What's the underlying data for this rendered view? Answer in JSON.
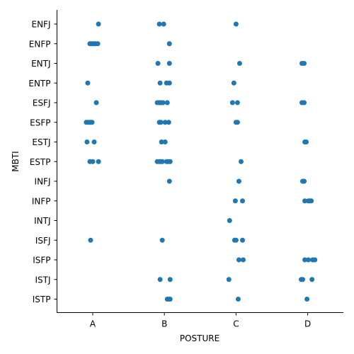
{
  "chart_data": {
    "type": "scatter",
    "subtype": "categorical strip plot",
    "xlabel": "POSTURE",
    "ylabel": "MBTI",
    "x_categories": [
      "A",
      "B",
      "C",
      "D"
    ],
    "y_categories": [
      "ENFJ",
      "ENFP",
      "ENTJ",
      "ENTP",
      "ESFJ",
      "ESFP",
      "ESTJ",
      "ESTP",
      "INFJ",
      "INFP",
      "INTJ",
      "ISFJ",
      "ISFP",
      "ISTJ",
      "ISTP"
    ],
    "marker_color": "#1f77b4",
    "grid": false,
    "points": [
      {
        "x": "A",
        "y": "ENFJ",
        "jitter": 0.08
      },
      {
        "x": "B",
        "y": "ENFJ",
        "jitter": -0.07
      },
      {
        "x": "B",
        "y": "ENFJ",
        "jitter": -0.01
      },
      {
        "x": "C",
        "y": "ENFJ",
        "jitter": 0.0
      },
      {
        "x": "A",
        "y": "ENFP",
        "jitter": -0.04
      },
      {
        "x": "A",
        "y": "ENFP",
        "jitter": -0.02
      },
      {
        "x": "A",
        "y": "ENFP",
        "jitter": 0.0
      },
      {
        "x": "A",
        "y": "ENFP",
        "jitter": 0.02
      },
      {
        "x": "A",
        "y": "ENFP",
        "jitter": 0.04
      },
      {
        "x": "A",
        "y": "ENFP",
        "jitter": 0.07
      },
      {
        "x": "B",
        "y": "ENFP",
        "jitter": 0.07
      },
      {
        "x": "B",
        "y": "ENTJ",
        "jitter": -0.09
      },
      {
        "x": "B",
        "y": "ENTJ",
        "jitter": 0.07
      },
      {
        "x": "C",
        "y": "ENTJ",
        "jitter": 0.05
      },
      {
        "x": "D",
        "y": "ENTJ",
        "jitter": -0.08
      },
      {
        "x": "D",
        "y": "ENTJ",
        "jitter": -0.05
      },
      {
        "x": "A",
        "y": "ENTP",
        "jitter": -0.07
      },
      {
        "x": "B",
        "y": "ENTP",
        "jitter": -0.06
      },
      {
        "x": "B",
        "y": "ENTP",
        "jitter": 0.03
      },
      {
        "x": "B",
        "y": "ENTP",
        "jitter": 0.07
      },
      {
        "x": "C",
        "y": "ENTP",
        "jitter": -0.03
      },
      {
        "x": "A",
        "y": "ESFJ",
        "jitter": 0.05
      },
      {
        "x": "B",
        "y": "ESFJ",
        "jitter": -0.1
      },
      {
        "x": "B",
        "y": "ESFJ",
        "jitter": -0.07
      },
      {
        "x": "B",
        "y": "ESFJ",
        "jitter": -0.05
      },
      {
        "x": "B",
        "y": "ESFJ",
        "jitter": -0.02
      },
      {
        "x": "B",
        "y": "ESFJ",
        "jitter": 0.04
      },
      {
        "x": "C",
        "y": "ESFJ",
        "jitter": -0.05
      },
      {
        "x": "C",
        "y": "ESFJ",
        "jitter": 0.02
      },
      {
        "x": "D",
        "y": "ESFJ",
        "jitter": -0.08
      },
      {
        "x": "D",
        "y": "ESFJ",
        "jitter": -0.05
      },
      {
        "x": "A",
        "y": "ESFP",
        "jitter": -0.09
      },
      {
        "x": "A",
        "y": "ESFP",
        "jitter": -0.07
      },
      {
        "x": "A",
        "y": "ESFP",
        "jitter": -0.05
      },
      {
        "x": "A",
        "y": "ESFP",
        "jitter": -0.03
      },
      {
        "x": "A",
        "y": "ESFP",
        "jitter": -0.01
      },
      {
        "x": "B",
        "y": "ESFP",
        "jitter": -0.07
      },
      {
        "x": "B",
        "y": "ESFP",
        "jitter": -0.05
      },
      {
        "x": "B",
        "y": "ESFP",
        "jitter": 0.01
      },
      {
        "x": "B",
        "y": "ESFP",
        "jitter": 0.06
      },
      {
        "x": "C",
        "y": "ESFP",
        "jitter": 0.0
      },
      {
        "x": "C",
        "y": "ESFP",
        "jitter": 0.02
      },
      {
        "x": "A",
        "y": "ESTJ",
        "jitter": -0.08
      },
      {
        "x": "A",
        "y": "ESTJ",
        "jitter": 0.02
      },
      {
        "x": "B",
        "y": "ESTJ",
        "jitter": -0.04
      },
      {
        "x": "B",
        "y": "ESTJ",
        "jitter": 0.01
      },
      {
        "x": "D",
        "y": "ESTJ",
        "jitter": -0.04
      },
      {
        "x": "D",
        "y": "ESTJ",
        "jitter": -0.02
      },
      {
        "x": "A",
        "y": "ESTP",
        "jitter": -0.04
      },
      {
        "x": "A",
        "y": "ESTP",
        "jitter": 0.0
      },
      {
        "x": "A",
        "y": "ESTP",
        "jitter": 0.08
      },
      {
        "x": "B",
        "y": "ESTP",
        "jitter": -0.1
      },
      {
        "x": "B",
        "y": "ESTP",
        "jitter": -0.07
      },
      {
        "x": "B",
        "y": "ESTP",
        "jitter": -0.05
      },
      {
        "x": "B",
        "y": "ESTP",
        "jitter": -0.03
      },
      {
        "x": "B",
        "y": "ESTP",
        "jitter": 0.03
      },
      {
        "x": "B",
        "y": "ESTP",
        "jitter": 0.05
      },
      {
        "x": "B",
        "y": "ESTP",
        "jitter": 0.08
      },
      {
        "x": "C",
        "y": "ESTP",
        "jitter": 0.07
      },
      {
        "x": "B",
        "y": "INFJ",
        "jitter": 0.07
      },
      {
        "x": "C",
        "y": "INFJ",
        "jitter": 0.04
      },
      {
        "x": "D",
        "y": "INFJ",
        "jitter": -0.07
      },
      {
        "x": "D",
        "y": "INFJ",
        "jitter": -0.05
      },
      {
        "x": "C",
        "y": "INFP",
        "jitter": -0.01
      },
      {
        "x": "C",
        "y": "INFP",
        "jitter": 0.09
      },
      {
        "x": "D",
        "y": "INFP",
        "jitter": -0.04
      },
      {
        "x": "D",
        "y": "INFP",
        "jitter": 0.01
      },
      {
        "x": "D",
        "y": "INFP",
        "jitter": 0.03
      },
      {
        "x": "D",
        "y": "INFP",
        "jitter": 0.05
      },
      {
        "x": "C",
        "y": "INTJ",
        "jitter": -0.09
      },
      {
        "x": "A",
        "y": "ISFJ",
        "jitter": -0.03
      },
      {
        "x": "B",
        "y": "ISFJ",
        "jitter": -0.03
      },
      {
        "x": "C",
        "y": "ISFJ",
        "jitter": -0.02
      },
      {
        "x": "C",
        "y": "ISFJ",
        "jitter": 0.0
      },
      {
        "x": "C",
        "y": "ISFJ",
        "jitter": 0.09
      },
      {
        "x": "C",
        "y": "ISFP",
        "jitter": 0.04
      },
      {
        "x": "C",
        "y": "ISFP",
        "jitter": 0.1
      },
      {
        "x": "D",
        "y": "ISFP",
        "jitter": -0.04
      },
      {
        "x": "D",
        "y": "ISFP",
        "jitter": 0.01
      },
      {
        "x": "D",
        "y": "ISFP",
        "jitter": 0.07
      },
      {
        "x": "D",
        "y": "ISFP",
        "jitter": 0.1
      },
      {
        "x": "B",
        "y": "ISTJ",
        "jitter": -0.06
      },
      {
        "x": "B",
        "y": "ISTJ",
        "jitter": 0.08
      },
      {
        "x": "C",
        "y": "ISTJ",
        "jitter": -0.1
      },
      {
        "x": "D",
        "y": "ISTJ",
        "jitter": -0.09
      },
      {
        "x": "D",
        "y": "ISTJ",
        "jitter": -0.07
      },
      {
        "x": "D",
        "y": "ISTJ",
        "jitter": 0.06
      },
      {
        "x": "B",
        "y": "ISTP",
        "jitter": 0.04
      },
      {
        "x": "B",
        "y": "ISTP",
        "jitter": 0.06
      },
      {
        "x": "B",
        "y": "ISTP",
        "jitter": 0.08
      },
      {
        "x": "C",
        "y": "ISTP",
        "jitter": 0.03
      },
      {
        "x": "D",
        "y": "ISTP",
        "jitter": -0.01
      }
    ]
  }
}
